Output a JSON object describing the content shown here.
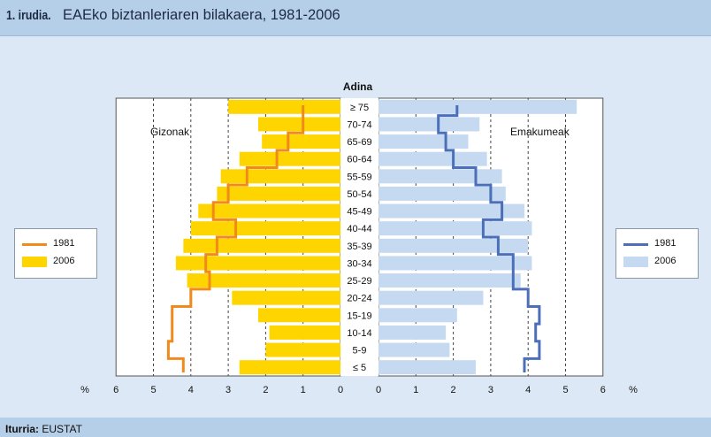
{
  "header": {
    "figure_label": "1. irudia.",
    "title": "EAEko biztanleriaren bilakaera, 1981-2006"
  },
  "source": {
    "label": "Iturria:",
    "value": "EUSTAT"
  },
  "legend_left": {
    "items": [
      {
        "label": "1981",
        "color": "#f08a1c"
      },
      {
        "label": "2006",
        "color": "#ffd500"
      }
    ]
  },
  "legend_right": {
    "items": [
      {
        "label": "1981",
        "color": "#4c6fba"
      },
      {
        "label": "2006",
        "color": "#c5d9f1"
      }
    ]
  },
  "chart_data": {
    "type": "bar",
    "orientation": "horizontal-population-pyramid",
    "title": "",
    "center_axis_title": "Adina",
    "left_panel_label": "Gizonak",
    "right_panel_label": "Emakumeak",
    "axis_unit": "%",
    "xlim": [
      0,
      6
    ],
    "left_ticks": [
      "6",
      "5",
      "4",
      "3",
      "2",
      "1",
      "0"
    ],
    "right_ticks": [
      "0",
      "1",
      "2",
      "3",
      "4",
      "5",
      "6"
    ],
    "grid": "dashed vertical at 1-5",
    "categories": [
      "≥ 75",
      "70-74",
      "65-69",
      "60-64",
      "55-59",
      "50-54",
      "45-49",
      "40-44",
      "35-39",
      "30-34",
      "25-29",
      "20-24",
      "15-19",
      "10-14",
      "5-9",
      "≤ 5"
    ],
    "colors": {
      "men_2006": "#ffd500",
      "men_1981": "#f08a1c",
      "women_2006": "#c5d9f1",
      "women_1981": "#4c6fba"
    },
    "series": [
      {
        "name": "2006",
        "panel": "Gizonak",
        "values": [
          3.0,
          2.2,
          2.1,
          2.7,
          3.2,
          3.3,
          3.8,
          4.0,
          4.2,
          4.4,
          4.1,
          2.9,
          2.2,
          1.9,
          2.0,
          2.7
        ]
      },
      {
        "name": "1981",
        "panel": "Gizonak",
        "values": [
          1.0,
          1.0,
          1.4,
          1.7,
          2.5,
          3.0,
          3.4,
          2.8,
          3.3,
          3.6,
          3.5,
          4.0,
          4.5,
          4.5,
          4.6,
          4.2
        ]
      },
      {
        "name": "2006",
        "panel": "Emakumeak",
        "values": [
          5.3,
          2.7,
          2.4,
          2.9,
          3.3,
          3.4,
          3.9,
          4.1,
          4.0,
          4.1,
          3.8,
          2.8,
          2.1,
          1.8,
          1.9,
          2.6
        ]
      },
      {
        "name": "1981",
        "panel": "Emakumeak",
        "values": [
          2.1,
          1.6,
          1.8,
          2.0,
          2.6,
          3.0,
          3.3,
          2.8,
          3.2,
          3.6,
          3.6,
          4.0,
          4.3,
          4.2,
          4.3,
          3.9
        ]
      }
    ]
  }
}
